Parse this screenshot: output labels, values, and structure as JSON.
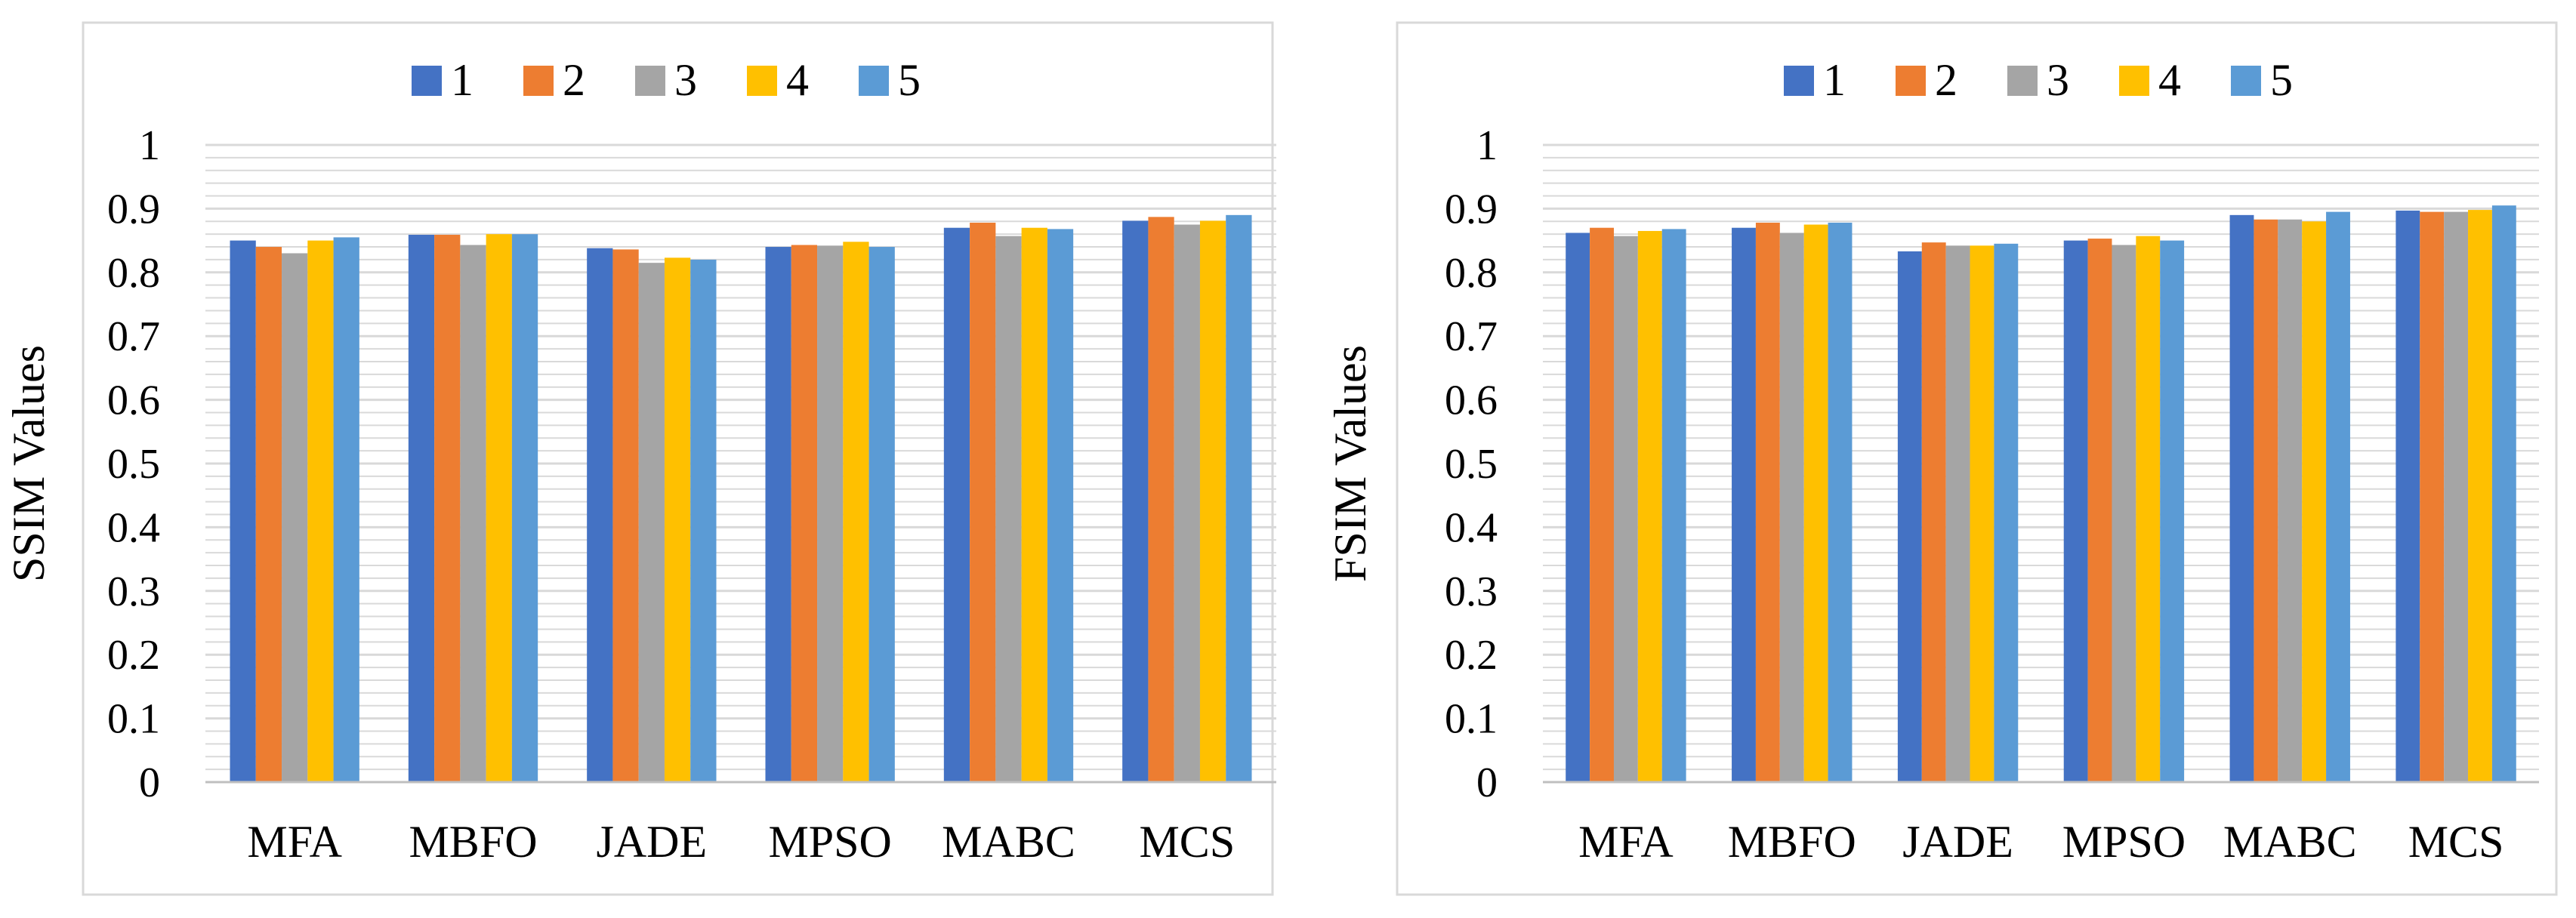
{
  "colors": {
    "series": [
      "#4472C4",
      "#ED7D31",
      "#A5A5A5",
      "#FFC000",
      "#5B9BD5"
    ],
    "gridline": "#D9D9D9",
    "frame": "#D9D9D9",
    "axis": "#BFBFBF"
  },
  "chart_data": [
    {
      "type": "bar",
      "title": "",
      "xlabel": "",
      "ylabel": "SSIM Values",
      "ylim": [
        0,
        1
      ],
      "yticks": [
        "0",
        "0.1",
        "0.2",
        "0.3",
        "0.4",
        "0.5",
        "0.6",
        "0.7",
        "0.8",
        "0.9",
        "1"
      ],
      "grid": true,
      "legend_position": "top",
      "categories": [
        "MFA",
        "MBFO",
        "JADE",
        "MPSO",
        "MABC",
        "MCS"
      ],
      "series": [
        {
          "name": "1",
          "values": [
            0.85,
            0.859,
            0.838,
            0.84,
            0.87,
            0.881
          ]
        },
        {
          "name": "2",
          "values": [
            0.84,
            0.859,
            0.836,
            0.843,
            0.878,
            0.887
          ]
        },
        {
          "name": "3",
          "values": [
            0.83,
            0.843,
            0.815,
            0.842,
            0.857,
            0.875
          ]
        },
        {
          "name": "4",
          "values": [
            0.85,
            0.86,
            0.823,
            0.848,
            0.87,
            0.881
          ]
        },
        {
          "name": "5",
          "values": [
            0.855,
            0.86,
            0.82,
            0.84,
            0.868,
            0.89
          ]
        }
      ]
    },
    {
      "type": "bar",
      "title": "",
      "xlabel": "",
      "ylabel": "FSIM Values",
      "ylim": [
        0,
        1
      ],
      "yticks": [
        "0",
        "0.1",
        "0.2",
        "0.3",
        "0.4",
        "0.5",
        "0.6",
        "0.7",
        "0.8",
        "0.9",
        "1"
      ],
      "grid": true,
      "legend_position": "top",
      "categories": [
        "MFA",
        "MBFO",
        "JADE",
        "MPSO",
        "MABC",
        "MCS"
      ],
      "series": [
        {
          "name": "1",
          "values": [
            0.862,
            0.87,
            0.833,
            0.85,
            0.89,
            0.897
          ]
        },
        {
          "name": "2",
          "values": [
            0.87,
            0.878,
            0.847,
            0.853,
            0.883,
            0.895
          ]
        },
        {
          "name": "3",
          "values": [
            0.857,
            0.862,
            0.842,
            0.843,
            0.883,
            0.895
          ]
        },
        {
          "name": "4",
          "values": [
            0.865,
            0.875,
            0.842,
            0.857,
            0.88,
            0.898
          ]
        },
        {
          "name": "5",
          "values": [
            0.868,
            0.878,
            0.845,
            0.85,
            0.895,
            0.905
          ]
        }
      ]
    }
  ]
}
